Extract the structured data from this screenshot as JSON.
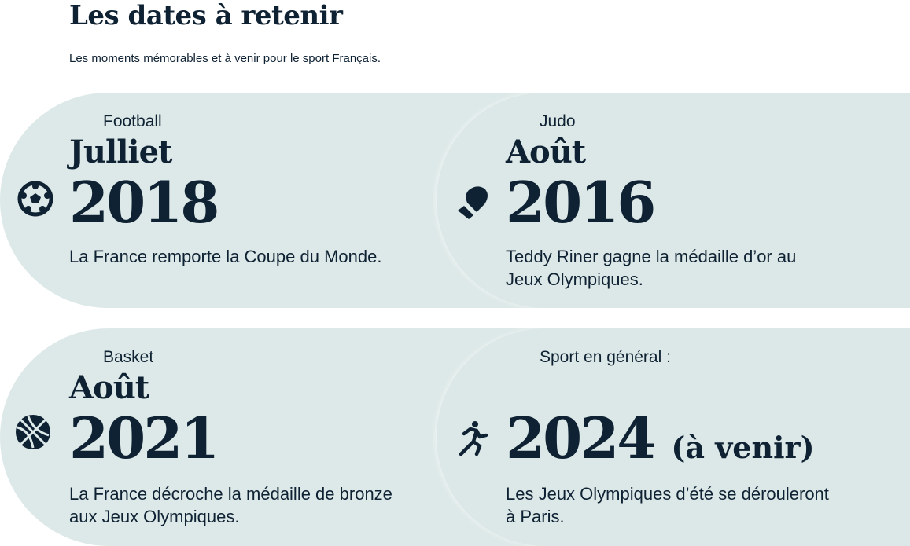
{
  "header": {
    "title": "Les dates à retenir",
    "subtitle": "Les moments mémorables et à venir pour le sport Français."
  },
  "cards": [
    {
      "category": "Football",
      "month": "Julliet",
      "year": "2018",
      "extra": "",
      "description": "La France remporte la Coupe du Monde.",
      "icon": "soccer-ball-icon"
    },
    {
      "category": "Judo",
      "month": "Août",
      "year": "2016",
      "extra": "",
      "description": "Teddy Riner gagne la médaille d’or au Jeux Olympiques.",
      "icon": "glove-icon"
    },
    {
      "category": "Basket",
      "month": "Août",
      "year": "2021",
      "extra": "",
      "description": "La France décroche la médaille de bronze aux Jeux Olympiques.",
      "icon": "basketball-icon"
    },
    {
      "category": "Sport en général :",
      "month": "",
      "year": "2024",
      "extra": "(à venir)",
      "description": "Les Jeux Olympiques d’été se dérouleront à Paris.",
      "icon": "runner-icon"
    }
  ],
  "colors": {
    "card_bg": "#dde9e8",
    "text": "#0f2233"
  }
}
